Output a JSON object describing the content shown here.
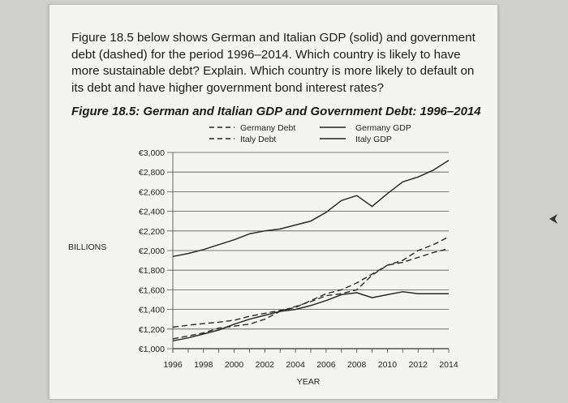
{
  "question": {
    "text": "Figure 18.5 below shows German and Italian GDP (solid) and government debt (dashed) for the period 1996–2014. Which country is likely to have more sustainable debt? Explain. Which country is more likely to default on its debt and have higher government bond interest rates?"
  },
  "chart_data": {
    "type": "line",
    "title": "Figure 18.5: German and Italian GDP and Government Debt: 1996–2014",
    "xlabel": "YEAR",
    "ylabel": "BILLIONS",
    "x_ticks": [
      "1996",
      "1998",
      "2000",
      "2002",
      "2004",
      "2006",
      "2008",
      "2010",
      "2012",
      "2014"
    ],
    "y_ticks": [
      "€1,000",
      "€1,200",
      "€1,400",
      "€1,600",
      "€1,800",
      "€2,000",
      "€2,200",
      "€2,400",
      "€2,600",
      "€2,800",
      "€3,000"
    ],
    "xlim": [
      1996,
      2014
    ],
    "ylim": [
      1000,
      3000
    ],
    "grid": true,
    "legend_position": "top",
    "series": [
      {
        "name": "Germany Debt",
        "style": "dashed",
        "x": [
          1996,
          1997,
          1998,
          1999,
          2000,
          2001,
          2002,
          2003,
          2004,
          2005,
          2006,
          2007,
          2008,
          2009,
          2010,
          2011,
          2012,
          2013,
          2014
        ],
        "values": [
          1100,
          1130,
          1160,
          1210,
          1230,
          1250,
          1300,
          1380,
          1430,
          1480,
          1540,
          1560,
          1600,
          1750,
          1850,
          1880,
          1930,
          1980,
          2020
        ]
      },
      {
        "name": "Italy Debt",
        "style": "dashed",
        "x": [
          1996,
          1997,
          1998,
          1999,
          2000,
          2001,
          2002,
          2003,
          2004,
          2005,
          2006,
          2007,
          2008,
          2009,
          2010,
          2011,
          2012,
          2013,
          2014
        ],
        "values": [
          1220,
          1240,
          1255,
          1270,
          1290,
          1330,
          1360,
          1390,
          1420,
          1490,
          1560,
          1600,
          1670,
          1760,
          1850,
          1900,
          2000,
          2060,
          2140
        ]
      },
      {
        "name": "Germany GDP",
        "style": "solid",
        "x": [
          1996,
          1997,
          1998,
          1999,
          2000,
          2001,
          2002,
          2003,
          2004,
          2005,
          2006,
          2007,
          2008,
          2009,
          2010,
          2011,
          2012,
          2013,
          2014
        ],
        "values": [
          1940,
          1970,
          2010,
          2060,
          2110,
          2170,
          2200,
          2220,
          2260,
          2300,
          2390,
          2510,
          2560,
          2450,
          2580,
          2700,
          2750,
          2820,
          2920
        ]
      },
      {
        "name": "Italy GDP",
        "style": "solid",
        "x": [
          1996,
          1997,
          1998,
          1999,
          2000,
          2001,
          2002,
          2003,
          2004,
          2005,
          2006,
          2007,
          2008,
          2009,
          2010,
          2011,
          2012,
          2013,
          2014
        ],
        "values": [
          1080,
          1110,
          1150,
          1190,
          1250,
          1300,
          1340,
          1380,
          1400,
          1440,
          1490,
          1550,
          1570,
          1520,
          1550,
          1580,
          1560,
          1560,
          1560
        ]
      }
    ]
  }
}
